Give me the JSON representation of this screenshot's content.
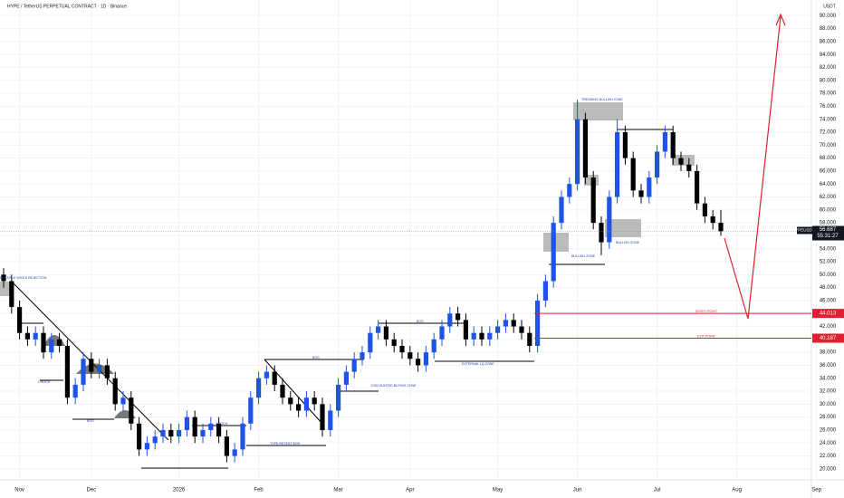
{
  "chart_data": {
    "type": "candlestick",
    "title": "HYPE / TetherUS PERPETUAL CONTRACT · 1D · Binance",
    "y_axis_label": "USDT",
    "categories": [
      null,
      null,
      "Nov",
      null,
      null,
      null,
      null,
      null,
      null,
      null,
      null,
      "Dec",
      null,
      null,
      null,
      null,
      null,
      null,
      null,
      null,
      null,
      null,
      "2026",
      null,
      null,
      null,
      null,
      null,
      null,
      null,
      null,
      null,
      "Feb",
      null,
      null,
      null,
      null,
      null,
      null,
      null,
      null,
      null,
      "Mar",
      null,
      null,
      null,
      null,
      null,
      null,
      null,
      null,
      "Apr",
      null,
      null,
      null,
      null,
      null,
      null,
      null,
      null,
      null,
      null,
      "May",
      null,
      null,
      null,
      null,
      null,
      null,
      null,
      null,
      null,
      "Jun",
      null,
      null,
      null,
      null,
      null,
      null,
      null,
      null,
      null,
      "Jul",
      null,
      null,
      null,
      null,
      null,
      null,
      null,
      null,
      null,
      "Aug",
      null,
      null,
      null,
      null,
      null,
      null,
      null,
      null,
      null,
      "Sep"
    ],
    "ohlc": [
      [
        50,
        51,
        48,
        49
      ],
      [
        49,
        50,
        44,
        45
      ],
      [
        45,
        46,
        40,
        41
      ],
      [
        41,
        42,
        39,
        40
      ],
      [
        40,
        42,
        39,
        41
      ],
      [
        41,
        42,
        37,
        38
      ],
      [
        38,
        41,
        37,
        40
      ],
      [
        40,
        41,
        38,
        39
      ],
      [
        39,
        40,
        30,
        31
      ],
      [
        31,
        34,
        30,
        33
      ],
      [
        33,
        38,
        32,
        37
      ],
      [
        37,
        38,
        34,
        35
      ],
      [
        35,
        37,
        34,
        36
      ],
      [
        36,
        37,
        33,
        34
      ],
      [
        34,
        35,
        29,
        30
      ],
      [
        30,
        32,
        29,
        31
      ],
      [
        31,
        32,
        26,
        27
      ],
      [
        27,
        28,
        22,
        23
      ],
      [
        23,
        25,
        22,
        24
      ],
      [
        24,
        26,
        23,
        25
      ],
      [
        25,
        27,
        24,
        26
      ],
      [
        26,
        27,
        24,
        25
      ],
      [
        25,
        27,
        24,
        26
      ],
      [
        26,
        29,
        25,
        28
      ],
      [
        28,
        29,
        24,
        25
      ],
      [
        25,
        27,
        24,
        26
      ],
      [
        26,
        28,
        25,
        27
      ],
      [
        27,
        28,
        24,
        25
      ],
      [
        25,
        26,
        21,
        22
      ],
      [
        22,
        24,
        21,
        23
      ],
      [
        23,
        28,
        22,
        27
      ],
      [
        27,
        32,
        26,
        31
      ],
      [
        31,
        35,
        30,
        34
      ],
      [
        34,
        36,
        33,
        35
      ],
      [
        35,
        36,
        32,
        33
      ],
      [
        33,
        34,
        30,
        31
      ],
      [
        31,
        32,
        29,
        30
      ],
      [
        30,
        31,
        28,
        29
      ],
      [
        29,
        32,
        28,
        31
      ],
      [
        31,
        32,
        29,
        30
      ],
      [
        30,
        31,
        25,
        26
      ],
      [
        26,
        30,
        25,
        29
      ],
      [
        29,
        34,
        28,
        33
      ],
      [
        33,
        36,
        32,
        35
      ],
      [
        35,
        38,
        34,
        37
      ],
      [
        37,
        39,
        36,
        38
      ],
      [
        38,
        42,
        37,
        41
      ],
      [
        41,
        43,
        40,
        42
      ],
      [
        42,
        43,
        39,
        40
      ],
      [
        40,
        41,
        38,
        39
      ],
      [
        39,
        40,
        37,
        38
      ],
      [
        38,
        39,
        36,
        37
      ],
      [
        37,
        38,
        35,
        36
      ],
      [
        36,
        39,
        35,
        38
      ],
      [
        38,
        41,
        37,
        40
      ],
      [
        40,
        43,
        39,
        42
      ],
      [
        42,
        45,
        41,
        44
      ],
      [
        44,
        45,
        42,
        43
      ],
      [
        43,
        44,
        39,
        40
      ],
      [
        40,
        42,
        39,
        41
      ],
      [
        41,
        42,
        39,
        40
      ],
      [
        40,
        42,
        39,
        41
      ],
      [
        41,
        43,
        40,
        42
      ],
      [
        42,
        44,
        41,
        43
      ],
      [
        43,
        44,
        41,
        42
      ],
      [
        42,
        43,
        40,
        41
      ],
      [
        41,
        42,
        38,
        39
      ],
      [
        39,
        47,
        38,
        46
      ],
      [
        46,
        50,
        45,
        49
      ],
      [
        49,
        59,
        48,
        58
      ],
      [
        58,
        63,
        57,
        62
      ],
      [
        62,
        65,
        61,
        64
      ],
      [
        64,
        77,
        63,
        74
      ],
      [
        74,
        75,
        64,
        65
      ],
      [
        65,
        66,
        57,
        58
      ],
      [
        58,
        59,
        53,
        55
      ],
      [
        55,
        63,
        54,
        62
      ],
      [
        62,
        74,
        61,
        72
      ],
      [
        72,
        73,
        67,
        68
      ],
      [
        68,
        69,
        62,
        63
      ],
      [
        63,
        64,
        61,
        62
      ],
      [
        62,
        66,
        61,
        65
      ],
      [
        65,
        70,
        64,
        69
      ],
      [
        69,
        73,
        68,
        72
      ],
      [
        72,
        73,
        67,
        68
      ],
      [
        68,
        69,
        66,
        67
      ],
      [
        67,
        68,
        65,
        66
      ],
      [
        66,
        67,
        60,
        61
      ],
      [
        61,
        62,
        58,
        59
      ],
      [
        59,
        60,
        57,
        58
      ],
      [
        58,
        60,
        56,
        56.7
      ],
      null,
      null,
      null,
      null,
      null,
      null,
      null,
      null,
      null,
      null,
      null,
      null
    ],
    "up_color": "#1e53e5",
    "down_color": "#000000",
    "ylim": [
      19,
      92
    ],
    "yticks": [
      {
        "value": 20,
        "label": "20.000"
      },
      {
        "value": 22,
        "label": "22.000"
      },
      {
        "value": 24,
        "label": "24.000"
      },
      {
        "value": 26,
        "label": "26.000"
      },
      {
        "value": 28,
        "label": "28.000"
      },
      {
        "value": 30,
        "label": "30.000"
      },
      {
        "value": 32,
        "label": "32.000"
      },
      {
        "value": 34,
        "label": "34.000"
      },
      {
        "value": 36,
        "label": "36.000"
      },
      {
        "value": 38,
        "label": "38.000"
      },
      {
        "value": 40,
        "label": "40.000"
      },
      {
        "value": 42,
        "label": "42.000"
      },
      {
        "value": 44,
        "label": "44.000"
      },
      {
        "value": 46,
        "label": "46.000"
      },
      {
        "value": 48,
        "label": "48.000"
      },
      {
        "value": 50,
        "label": "50.000"
      },
      {
        "value": 52,
        "label": "52.000"
      },
      {
        "value": 54,
        "label": "54.000"
      },
      {
        "value": 56,
        "label": "56.000"
      },
      {
        "value": 58,
        "label": "58.000"
      },
      {
        "value": 60,
        "label": "60.000"
      },
      {
        "value": 62,
        "label": "62.000"
      },
      {
        "value": 64,
        "label": "64.000"
      },
      {
        "value": 66,
        "label": "66.000"
      },
      {
        "value": 68,
        "label": "68.000"
      },
      {
        "value": 70,
        "label": "70.000"
      },
      {
        "value": 72,
        "label": "72.000"
      },
      {
        "value": 74,
        "label": "74.000"
      },
      {
        "value": 76,
        "label": "76.000"
      },
      {
        "value": 78,
        "label": "78.000"
      },
      {
        "value": 80,
        "label": "80.000"
      },
      {
        "value": 82,
        "label": "82.000"
      },
      {
        "value": 84,
        "label": "84.000"
      },
      {
        "value": 86,
        "label": "86.000"
      },
      {
        "value": 88,
        "label": "88.000"
      },
      {
        "value": 90,
        "label": "90.000"
      }
    ],
    "grid": true,
    "symbol_tag": "HYPEUSDT.P",
    "last_price": 56.687,
    "countdown": "55:31:27",
    "levels": [
      {
        "value": 44.013,
        "label": "44.013",
        "name": "ENTRY POINT",
        "color": "#e0202e"
      },
      {
        "value": 40.187,
        "label": "40.187",
        "name": "EXIT POINT",
        "color": "#e0202e"
      }
    ],
    "annotations": [
      "MULTIPLE WICKS REJECTION",
      "TRENDING BULLISH ZONE",
      "BULLISH ZONE",
      "BULLISH ZONE",
      "DISCOUNTED BUYING ZONE",
      "EXTERNAL LQ ZONE",
      "CHOCH",
      "BOS",
      "BOS",
      "TYPE RETEST BOS",
      "CHOCH",
      "BOS"
    ]
  }
}
